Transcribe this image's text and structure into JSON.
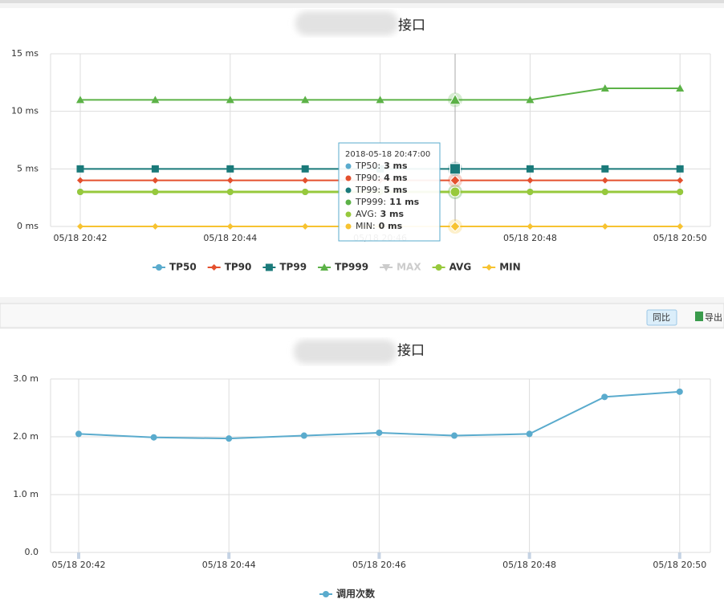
{
  "toolbar": {
    "compare": "同比",
    "export": "导出"
  },
  "chart_data": [
    {
      "type": "line",
      "title": "接口",
      "categories": [
        "05/18 20:42",
        null,
        "05/18 20:44",
        null,
        "05/18 20:46",
        null,
        "05/18 20:48",
        null,
        "05/18 20:50"
      ],
      "ylim": [
        0,
        15
      ],
      "yticks": [
        {
          "value": 0,
          "label": "0 ms"
        },
        {
          "value": 5,
          "label": "5 ms"
        },
        {
          "value": 10,
          "label": "10 ms"
        },
        {
          "value": 15,
          "label": "15 ms"
        }
      ],
      "grid": true,
      "series": [
        {
          "name": "TP50",
          "color": "#5aabcd",
          "marker": "circle",
          "visible": true,
          "values": [
            3,
            3,
            3,
            3,
            3,
            3,
            3,
            3,
            3
          ]
        },
        {
          "name": "TP90",
          "color": "#e4502e",
          "marker": "diamond",
          "visible": true,
          "values": [
            4,
            4,
            4,
            4,
            4,
            4,
            4,
            4,
            4
          ]
        },
        {
          "name": "TP99",
          "color": "#1a7a7a",
          "marker": "square",
          "visible": true,
          "values": [
            5,
            5,
            5,
            5,
            5,
            5,
            5,
            5,
            5
          ]
        },
        {
          "name": "TP999",
          "color": "#5cb247",
          "marker": "triangle",
          "visible": true,
          "values": [
            11,
            11,
            11,
            11,
            11,
            11,
            11,
            12,
            12
          ]
        },
        {
          "name": "MAX",
          "color": "#cccccc",
          "marker": "triangle-down",
          "visible": false,
          "values": [
            null,
            null,
            null,
            null,
            null,
            null,
            null,
            null,
            null
          ]
        },
        {
          "name": "AVG",
          "color": "#97c93c",
          "marker": "circle",
          "visible": true,
          "values": [
            3,
            3,
            3,
            3,
            3,
            3,
            3,
            3,
            3
          ]
        },
        {
          "name": "MIN",
          "color": "#f7c331",
          "marker": "diamond",
          "visible": true,
          "values": [
            0,
            0,
            0,
            0,
            0,
            0,
            0,
            0,
            0
          ]
        }
      ],
      "tooltip": {
        "title": "2018-05-18 20:47:00",
        "index": 5,
        "items": [
          {
            "label": "TP50:",
            "value": "3 ms"
          },
          {
            "label": "TP90:",
            "value": "4 ms"
          },
          {
            "label": "TP99:",
            "value": "5 ms"
          },
          {
            "label": "TP999:",
            "value": "11 ms"
          },
          {
            "label": "AVG:",
            "value": "3 ms"
          },
          {
            "label": "MIN:",
            "value": "0 ms"
          }
        ]
      }
    },
    {
      "type": "line",
      "title": "接口",
      "categories": [
        "05/18 20:42",
        null,
        "05/18 20:44",
        null,
        "05/18 20:46",
        null,
        "05/18 20:48",
        null,
        "05/18 20:50"
      ],
      "ylim": [
        0,
        3
      ],
      "yticks": [
        {
          "value": 0,
          "label": "0.0"
        },
        {
          "value": 1,
          "label": "1.0 m"
        },
        {
          "value": 2,
          "label": "2.0 m"
        },
        {
          "value": 3,
          "label": "3.0 m"
        }
      ],
      "grid": true,
      "series": [
        {
          "name": "调用次数",
          "color": "#5aabcd",
          "marker": "circle",
          "visible": true,
          "values": [
            2.05,
            1.99,
            1.97,
            2.02,
            2.07,
            2.02,
            2.05,
            2.69,
            2.78
          ]
        }
      ]
    }
  ]
}
